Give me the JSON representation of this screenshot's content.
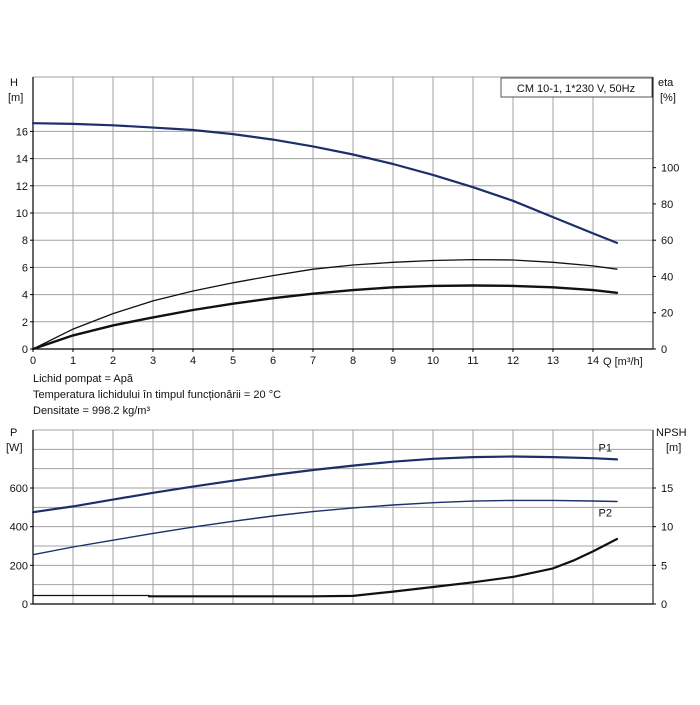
{
  "notes": [
    "Lichid pompat = Apă",
    "Temperatura lichidului în timpul funcționării = 20 °C",
    "Densitate = 998.2 kg/m³"
  ],
  "colors": {
    "blue": "#1d2f6b",
    "black": "#111111",
    "grid": "#a0a0a0"
  },
  "chart_data": [
    {
      "type": "line",
      "title": "CM 10-1, 1*230 V, 50Hz",
      "xlabel": "Q [m³/h]",
      "ylabel": "H [m]",
      "y2label": "eta [%]",
      "xlim": [
        0,
        15.5
      ],
      "ylim": [
        0,
        20
      ],
      "y2lim": [
        0,
        150
      ],
      "xticks": [
        0,
        1,
        2,
        3,
        4,
        5,
        6,
        7,
        8,
        9,
        10,
        11,
        12,
        13,
        14
      ],
      "yticks": [
        0,
        2,
        4,
        6,
        8,
        10,
        12,
        14,
        16
      ],
      "y2ticks": [
        0,
        20,
        40,
        60,
        80,
        100
      ],
      "grid": true,
      "series": [
        {
          "id": "H",
          "axis": "left",
          "color": "#1d2f6b",
          "width": 2.2,
          "x": [
            0,
            1,
            2,
            2.9,
            4,
            5,
            6,
            7,
            8,
            9,
            10,
            11,
            12,
            13,
            14,
            14.6
          ],
          "y": [
            16.6,
            16.55,
            16.45,
            16.3,
            16.1,
            15.8,
            15.4,
            14.9,
            14.3,
            13.6,
            12.8,
            11.9,
            10.9,
            9.7,
            8.5,
            7.8
          ]
        },
        {
          "id": "eta-outer",
          "axis": "right",
          "color": "#111111",
          "width": 1.3,
          "x": [
            0,
            1,
            2,
            3,
            4,
            5,
            6,
            7,
            8,
            9,
            10,
            11,
            12,
            13,
            14,
            14.6
          ],
          "y": [
            0,
            11,
            19.5,
            26.5,
            32,
            36.5,
            40.5,
            44,
            46.3,
            47.8,
            48.8,
            49.3,
            49.1,
            47.8,
            45.8,
            44
          ]
        },
        {
          "id": "eta-inner",
          "axis": "right",
          "color": "#111111",
          "width": 2.4,
          "x": [
            0,
            1,
            2,
            2.9,
            4,
            5,
            6,
            7,
            8,
            9,
            10,
            11,
            12,
            13,
            14,
            14.6
          ],
          "y": [
            0,
            7.5,
            13,
            17,
            21.5,
            25,
            28,
            30.5,
            32.5,
            34,
            34.8,
            35,
            34.8,
            34,
            32.5,
            31
          ]
        }
      ]
    },
    {
      "type": "line",
      "xlim": [
        0,
        15.5
      ],
      "ylabel": "P [W]",
      "y2label": "NPSH [m]",
      "ylim": [
        0,
        900
      ],
      "y2lim": [
        0,
        22.5
      ],
      "yticks": [
        0,
        200,
        400,
        600
      ],
      "y2ticks": [
        0,
        5,
        10,
        15
      ],
      "grid": true,
      "series": [
        {
          "id": "P1",
          "name": "P1",
          "axis": "left",
          "color": "#1d2f6b",
          "width": 2.2,
          "x": [
            0,
            1,
            2,
            3,
            4,
            5,
            6,
            7,
            8,
            9,
            10,
            11,
            12,
            13,
            14,
            14.6
          ],
          "y": [
            475,
            505,
            540,
            575,
            607,
            638,
            667,
            693,
            716,
            736,
            751,
            760,
            763,
            760,
            754,
            748
          ]
        },
        {
          "id": "P2",
          "name": "P2",
          "axis": "left",
          "color": "#1d2f6b",
          "width": 1.4,
          "x": [
            0,
            1,
            2,
            3,
            4,
            5,
            6,
            7,
            8,
            9,
            10,
            11,
            12,
            13,
            14,
            14.6
          ],
          "y": [
            255,
            295,
            330,
            365,
            398,
            428,
            455,
            478,
            497,
            512,
            524,
            532,
            536,
            536,
            533,
            530
          ]
        },
        {
          "id": "NPSH-ref",
          "axis": "right",
          "color": "#111111",
          "width": 1.2,
          "x": [
            0,
            2.9
          ],
          "y": [
            1.1,
            1.1
          ]
        },
        {
          "id": "NPSH",
          "axis": "right",
          "color": "#111111",
          "width": 2.2,
          "x": [
            2.9,
            5,
            7,
            8,
            9,
            10,
            11,
            12,
            13,
            13.5,
            14,
            14.6
          ],
          "y": [
            1.0,
            1.0,
            1.0,
            1.05,
            1.6,
            2.2,
            2.8,
            3.5,
            4.6,
            5.6,
            6.8,
            8.4
          ]
        }
      ]
    }
  ]
}
